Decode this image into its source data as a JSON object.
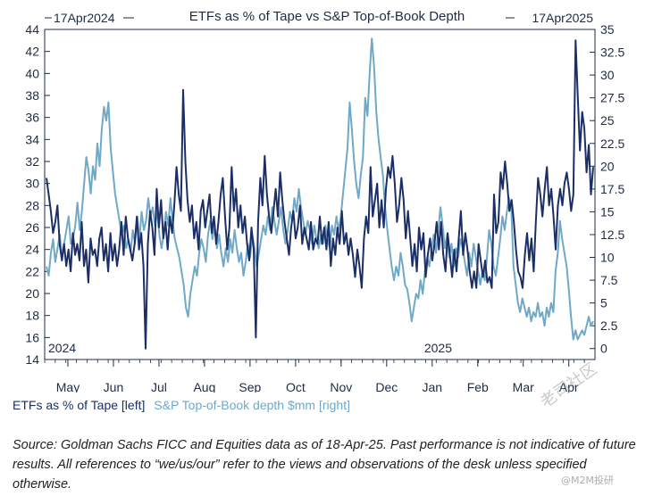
{
  "chart_data": {
    "type": "line",
    "title": "ETFs as % of Tape vs S&P Top-of-Book Depth",
    "date_start_label": "17Apr2024",
    "date_end_label": "17Apr2025",
    "year_labels": [
      "2024",
      "2025"
    ],
    "x_tick_labels": [
      "May",
      "Jun",
      "Jul",
      "Aug",
      "Sep",
      "Oct",
      "Nov",
      "Dec",
      "Jan",
      "Feb",
      "Mar",
      "Apr"
    ],
    "y_left_ticks": [
      14,
      16,
      18,
      20,
      22,
      24,
      26,
      28,
      30,
      32,
      34,
      36,
      38,
      40,
      42,
      44
    ],
    "y_right_ticks": [
      "0",
      "2.5",
      "5",
      "7.5",
      "10",
      "12.5",
      "15",
      "17.5",
      "20",
      "22.5",
      "25",
      "27.5",
      "30",
      "32.5",
      "35"
    ],
    "y_left_range": [
      14,
      44
    ],
    "y_right_range": [
      -1.2,
      35
    ],
    "series": [
      {
        "name": "ETFs as % of Tape [left]",
        "axis": "left",
        "color": "#1b2f66",
        "values": [
          30.5,
          29.0,
          27.5,
          25.5,
          26.5,
          28.0,
          24.5,
          23.0,
          24.5,
          22.5,
          24.0,
          22.0,
          25.5,
          23.5,
          24.5,
          23.0,
          26.5,
          22.5,
          24.0,
          21.0,
          25.0,
          23.5,
          24.0,
          22.5,
          25.0,
          26.0,
          23.0,
          24.5,
          22.0,
          25.5,
          23.0,
          24.5,
          22.5,
          24.0,
          26.5,
          23.5,
          27.0,
          25.0,
          24.0,
          23.0,
          24.5,
          27.0,
          24.0,
          25.5,
          22.5,
          15.0,
          24.5,
          27.5,
          26.0,
          23.5,
          29.5,
          26.0,
          28.5,
          25.0,
          26.5,
          24.0,
          27.0,
          25.5,
          28.0,
          31.5,
          29.0,
          27.5,
          38.5,
          32.0,
          28.5,
          26.5,
          28.0,
          25.0,
          26.5,
          24.0,
          27.5,
          28.5,
          26.0,
          27.5,
          29.0,
          25.5,
          27.0,
          24.5,
          26.5,
          29.0,
          30.5,
          27.0,
          24.0,
          26.0,
          31.5,
          27.5,
          29.5,
          26.0,
          28.0,
          25.5,
          27.0,
          24.5,
          23.0,
          26.0,
          24.0,
          16.0,
          26.5,
          30.5,
          28.0,
          32.5,
          29.0,
          27.0,
          25.5,
          27.5,
          29.5,
          27.0,
          31.0,
          28.5,
          26.5,
          25.0,
          23.5,
          26.0,
          27.5,
          25.0,
          26.0,
          28.0,
          24.5,
          26.0,
          25.0,
          24.0,
          26.5,
          24.0,
          25.0,
          24.5,
          27.0,
          24.5,
          26.0,
          24.0,
          26.5,
          22.5,
          25.0,
          23.5,
          26.0,
          24.5,
          27.5,
          24.5,
          25.5,
          23.5,
          25.0,
          23.5,
          21.5,
          24.0,
          22.5,
          20.5,
          25.0,
          27.0,
          25.5,
          31.5,
          27.0,
          28.5,
          30.0,
          26.0,
          28.5,
          26.0,
          29.5,
          31.5,
          30.5,
          32.5,
          30.0,
          26.5,
          28.0,
          30.5,
          28.5,
          25.0,
          27.5,
          25.0,
          22.5,
          24.5,
          22.0,
          26.0,
          24.0,
          25.5,
          21.5,
          23.5,
          25.0,
          23.0,
          24.5,
          26.5,
          24.0,
          26.5,
          23.5,
          22.0,
          25.5,
          23.5,
          21.5,
          24.0,
          22.0,
          25.0,
          27.5,
          23.5,
          25.5,
          24.0,
          22.0,
          20.5,
          22.0,
          20.5,
          24.5,
          23.0,
          21.5,
          23.0,
          21.0,
          21.5,
          20.5,
          29.0,
          25.5,
          26.5,
          31.0,
          29.5,
          32.0,
          30.0,
          27.5,
          28.5,
          26.5,
          24.0,
          22.0,
          21.5,
          20.5,
          23.5,
          25.5,
          23.0,
          25.0,
          22.0,
          26.5,
          30.5,
          29.0,
          27.0,
          29.5,
          31.5,
          28.0,
          29.5,
          27.0,
          24.0,
          28.0,
          29.5,
          28.0,
          30.0,
          31.0,
          29.5,
          27.5,
          29.0,
          43.0,
          38.0,
          33.0,
          36.5,
          35.0,
          31.0,
          33.5,
          29.0,
          31.5
        ]
      },
      {
        "name": "S&P Top-of-Book depth $mm [right]",
        "axis": "right",
        "color": "#6fa9c7",
        "values": [
          9.0,
          8.0,
          10.5,
          12.0,
          9.5,
          11.0,
          12.5,
          10.0,
          11.5,
          13.0,
          14.5,
          11.5,
          12.0,
          13.5,
          16.0,
          13.0,
          15.0,
          18.0,
          21.0,
          19.5,
          17.0,
          20.0,
          18.5,
          22.5,
          20.0,
          24.0,
          26.5,
          25.0,
          27.0,
          22.0,
          19.5,
          17.0,
          15.5,
          14.0,
          12.5,
          13.5,
          11.0,
          12.0,
          10.5,
          13.0,
          11.5,
          14.5,
          12.0,
          15.0,
          13.0,
          14.0,
          16.5,
          14.5,
          15.5,
          13.5,
          15.0,
          12.5,
          11.0,
          12.5,
          15.0,
          13.5,
          16.5,
          14.0,
          12.0,
          11.0,
          10.0,
          8.5,
          7.0,
          4.5,
          3.5,
          6.0,
          7.5,
          9.0,
          8.0,
          10.5,
          12.0,
          11.0,
          9.5,
          12.5,
          14.0,
          12.0,
          13.5,
          11.0,
          12.5,
          10.5,
          9.0,
          11.0,
          9.5,
          12.0,
          10.5,
          13.0,
          11.0,
          9.5,
          10.5,
          8.0,
          9.5,
          11.5,
          10.0,
          12.5,
          11.0,
          9.0,
          10.5,
          12.0,
          13.5,
          12.5,
          14.5,
          13.0,
          15.5,
          14.0,
          12.5,
          14.0,
          15.5,
          13.0,
          11.5,
          13.0,
          15.0,
          14.0,
          16.5,
          15.0,
          17.5,
          15.5,
          14.0,
          12.5,
          14.0,
          13.0,
          11.5,
          13.5,
          12.0,
          11.0,
          12.5,
          11.5,
          13.5,
          12.0,
          11.0,
          13.5,
          12.5,
          14.5,
          13.0,
          14.5,
          17.0,
          19.5,
          22.0,
          27.0,
          24.0,
          20.5,
          18.0,
          16.5,
          19.0,
          21.0,
          27.5,
          25.5,
          30.0,
          34.0,
          31.0,
          26.0,
          23.0,
          21.0,
          19.0,
          15.5,
          13.0,
          11.0,
          9.0,
          7.5,
          9.0,
          8.0,
          10.5,
          9.0,
          7.0,
          6.5,
          5.0,
          3.0,
          4.5,
          6.0,
          5.5,
          7.5,
          6.0,
          8.5,
          10.0,
          9.0,
          11.0,
          12.5,
          10.5,
          13.0,
          15.5,
          13.5,
          11.0,
          12.5,
          10.0,
          11.5,
          9.0,
          11.0,
          10.0,
          12.0,
          11.0,
          9.5,
          8.0,
          10.5,
          9.0,
          11.5,
          10.0,
          8.5,
          7.0,
          8.5,
          7.5,
          10.0,
          13.0,
          11.5,
          9.0,
          8.0,
          10.0,
          12.0,
          14.5,
          13.0,
          15.0,
          16.5,
          15.5,
          9.0,
          7.0,
          5.0,
          4.0,
          5.5,
          4.5,
          3.5,
          4.5,
          3.0,
          4.0,
          3.5,
          5.0,
          3.5,
          4.0,
          2.5,
          4.5,
          3.5,
          5.0,
          4.0,
          8.5,
          10.5,
          14.0,
          12.0,
          10.5,
          9.0,
          6.5,
          3.5,
          1.0,
          2.0,
          1.0,
          1.5,
          2.0,
          1.5,
          2.5,
          3.5,
          2.5,
          3.0
        ]
      }
    ]
  },
  "legend": {
    "etf_label": "ETFs as % of Tape [left]",
    "depth_label": "S&P Top-of-Book depth $mm [right]",
    "etf_color": "#1b2f66",
    "depth_color": "#6fa9c7"
  },
  "source": {
    "text": "Source: Goldman Sachs FICC and Equities data as of 18-Apr-25. Past performance is not indicative of future results. All references to “we/us/our” refer to the views and observations of the desk unless specified otherwise."
  },
  "watermark": {
    "brand": "老司社区",
    "handle": "@M2M投研"
  }
}
